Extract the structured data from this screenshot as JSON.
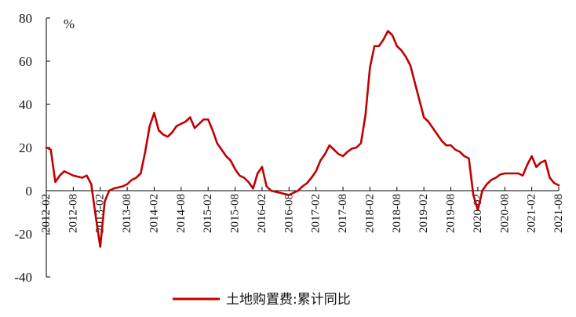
{
  "chart_data": {
    "type": "line",
    "unit": "%",
    "ylim": [
      -40,
      80
    ],
    "yticks": [
      -40,
      -20,
      0,
      20,
      40,
      60,
      80
    ],
    "x_ticks": [
      "2012-02",
      "2012-08",
      "2013-02",
      "2013-08",
      "2014-02",
      "2014-08",
      "2015-02",
      "2015-08",
      "2016-02",
      "2016-08",
      "2017-02",
      "2017-08",
      "2018-02",
      "2018-08",
      "2019-02",
      "2019-08",
      "2020-02",
      "2020-08",
      "2021-02",
      "2021-08"
    ],
    "grid": false,
    "legend_position": "bottom-center",
    "colors": {
      "series": "#c00000",
      "axis": "#000000"
    },
    "series": [
      {
        "name": "土地购置费:累计同比",
        "points": [
          [
            "2012-02",
            20
          ],
          [
            "2012-03",
            19
          ],
          [
            "2012-04",
            4
          ],
          [
            "2012-05",
            7
          ],
          [
            "2012-06",
            9
          ],
          [
            "2012-07",
            8
          ],
          [
            "2012-08",
            7
          ],
          [
            "2012-09",
            6.5
          ],
          [
            "2012-10",
            6
          ],
          [
            "2012-11",
            7
          ],
          [
            "2012-12",
            3
          ],
          [
            "2013-01",
            -12
          ],
          [
            "2013-02",
            -26
          ],
          [
            "2013-03",
            -5
          ],
          [
            "2013-04",
            0
          ],
          [
            "2013-05",
            1
          ],
          [
            "2013-06",
            1.5
          ],
          [
            "2013-07",
            2
          ],
          [
            "2013-08",
            3
          ],
          [
            "2013-09",
            5
          ],
          [
            "2013-10",
            6
          ],
          [
            "2013-11",
            8
          ],
          [
            "2013-12",
            18
          ],
          [
            "2014-01",
            30
          ],
          [
            "2014-02",
            36
          ],
          [
            "2014-03",
            28
          ],
          [
            "2014-04",
            26
          ],
          [
            "2014-05",
            25
          ],
          [
            "2014-06",
            27
          ],
          [
            "2014-07",
            30
          ],
          [
            "2014-08",
            31
          ],
          [
            "2014-09",
            32
          ],
          [
            "2014-10",
            34
          ],
          [
            "2014-11",
            29
          ],
          [
            "2014-12",
            31
          ],
          [
            "2015-01",
            33
          ],
          [
            "2015-02",
            33
          ],
          [
            "2015-03",
            28
          ],
          [
            "2015-04",
            22
          ],
          [
            "2015-05",
            19
          ],
          [
            "2015-06",
            16
          ],
          [
            "2015-07",
            14
          ],
          [
            "2015-08",
            10
          ],
          [
            "2015-09",
            7
          ],
          [
            "2015-10",
            6
          ],
          [
            "2015-11",
            4
          ],
          [
            "2015-12",
            1
          ],
          [
            "2016-01",
            8
          ],
          [
            "2016-02",
            11
          ],
          [
            "2016-03",
            2
          ],
          [
            "2016-04",
            0
          ],
          [
            "2016-05",
            -0.5
          ],
          [
            "2016-06",
            -1
          ],
          [
            "2016-07",
            -1.5
          ],
          [
            "2016-08",
            -2
          ],
          [
            "2016-09",
            -1
          ],
          [
            "2016-10",
            0
          ],
          [
            "2016-11",
            2
          ],
          [
            "2016-12",
            3.5
          ],
          [
            "2017-01",
            6
          ],
          [
            "2017-02",
            9
          ],
          [
            "2017-03",
            14
          ],
          [
            "2017-04",
            17
          ],
          [
            "2017-05",
            21
          ],
          [
            "2017-06",
            19
          ],
          [
            "2017-07",
            17
          ],
          [
            "2017-08",
            16
          ],
          [
            "2017-09",
            18
          ],
          [
            "2017-10",
            19.5
          ],
          [
            "2017-11",
            20
          ],
          [
            "2017-12",
            22
          ],
          [
            "2018-01",
            35
          ],
          [
            "2018-02",
            57
          ],
          [
            "2018-03",
            67
          ],
          [
            "2018-04",
            67
          ],
          [
            "2018-05",
            70
          ],
          [
            "2018-06",
            74
          ],
          [
            "2018-07",
            72
          ],
          [
            "2018-08",
            67
          ],
          [
            "2018-09",
            65
          ],
          [
            "2018-10",
            62
          ],
          [
            "2018-11",
            58
          ],
          [
            "2018-12",
            50
          ],
          [
            "2019-01",
            42
          ],
          [
            "2019-02",
            34
          ],
          [
            "2019-03",
            32
          ],
          [
            "2019-04",
            29
          ],
          [
            "2019-05",
            26
          ],
          [
            "2019-06",
            23
          ],
          [
            "2019-07",
            21
          ],
          [
            "2019-08",
            21
          ],
          [
            "2019-09",
            19
          ],
          [
            "2019-10",
            18
          ],
          [
            "2019-11",
            16
          ],
          [
            "2019-12",
            15
          ],
          [
            "2020-01",
            -2
          ],
          [
            "2020-02",
            -9
          ],
          [
            "2020-03",
            0
          ],
          [
            "2020-04",
            3
          ],
          [
            "2020-05",
            5
          ],
          [
            "2020-06",
            6
          ],
          [
            "2020-07",
            7.5
          ],
          [
            "2020-08",
            8
          ],
          [
            "2020-09",
            8
          ],
          [
            "2020-10",
            8
          ],
          [
            "2020-11",
            8
          ],
          [
            "2020-12",
            7
          ],
          [
            "2021-01",
            12
          ],
          [
            "2021-02",
            16
          ],
          [
            "2021-03",
            11
          ],
          [
            "2021-04",
            13
          ],
          [
            "2021-05",
            14
          ],
          [
            "2021-06",
            6
          ],
          [
            "2021-07",
            3.5
          ],
          [
            "2021-08",
            2.5
          ]
        ]
      }
    ]
  }
}
